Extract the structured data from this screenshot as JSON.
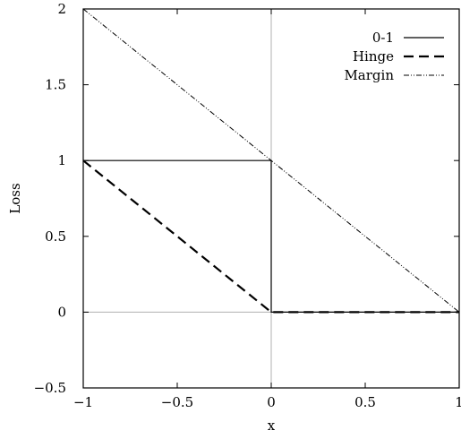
{
  "chart_data": {
    "type": "line",
    "title": "",
    "xlabel": "x",
    "ylabel": "Loss",
    "xlim": [
      -1,
      1
    ],
    "ylim": [
      -0.5,
      2
    ],
    "x_ticks": [
      -1,
      -0.5,
      0,
      0.5,
      1
    ],
    "y_ticks": [
      -0.5,
      0,
      0.5,
      1,
      1.5,
      2
    ],
    "x_tick_labels": [
      "−1",
      "−0.5",
      "0",
      "0.5",
      "1"
    ],
    "y_tick_labels": [
      "−0.5",
      "0",
      "0.5",
      "1",
      "1.5",
      "2"
    ],
    "grid": false,
    "reference_lines": {
      "x": 0,
      "y": 0,
      "color": "#b0b0b0"
    },
    "legend_position": "top-right",
    "series": [
      {
        "name": "0-1",
        "style": "solid",
        "color": "#000000",
        "points": [
          [
            -1,
            1
          ],
          [
            0,
            1
          ],
          [
            0,
            0
          ],
          [
            1,
            0
          ]
        ]
      },
      {
        "name": "Hinge",
        "style": "dashed",
        "color": "#000000",
        "points": [
          [
            -1,
            1
          ],
          [
            0,
            0
          ],
          [
            1,
            0
          ]
        ]
      },
      {
        "name": "Margin",
        "style": "dash-dot-dot",
        "color": "#000000",
        "points": [
          [
            -1,
            2
          ],
          [
            1,
            0
          ]
        ]
      }
    ]
  }
}
